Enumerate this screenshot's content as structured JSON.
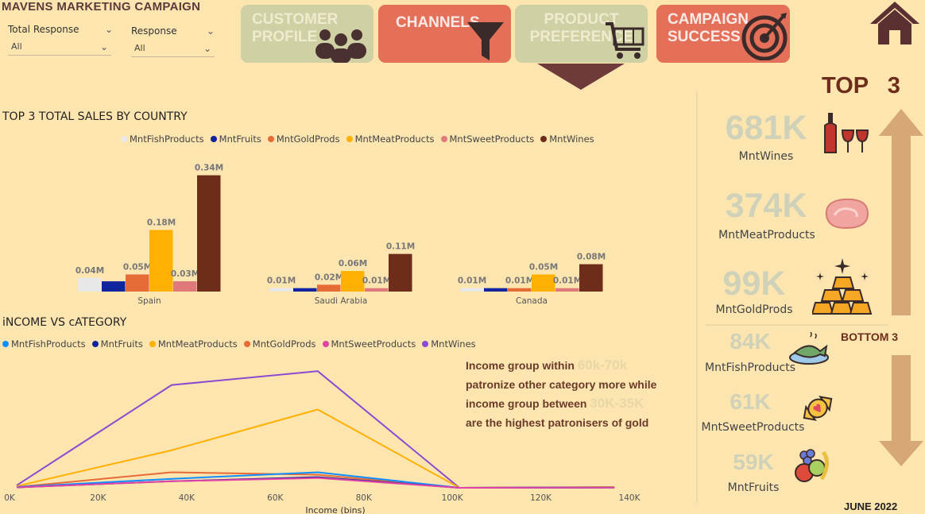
{
  "header": {
    "title": "MAVENS MARKETING CAMPAIGN",
    "slicers": [
      {
        "label": "Total Response",
        "value": "All"
      },
      {
        "label": "Response",
        "value": "All"
      }
    ],
    "nav": [
      {
        "label_line1": "CUSTOMER",
        "label_line2": "PROFILE",
        "icon": "people-icon",
        "color": "#cfd0a4"
      },
      {
        "label_line1": "CHANNELS",
        "label_line2": "",
        "icon": "funnel-icon",
        "color": "#e4705a"
      },
      {
        "label_line1": "PRODUCT",
        "label_line2": "PREFERENCE",
        "icon": "cart-icon",
        "color": "#cfd0a4"
      },
      {
        "label_line1": "CAMPAIGN",
        "label_line2": "SUCCESS",
        "icon": "target-icon",
        "color": "#e4705a"
      }
    ]
  },
  "sales_chart": {
    "title": "TOP 3 TOTAL SALES BY COUNTRY",
    "legend": [
      {
        "name": "MntFishProducts",
        "color": "#e8e8e8"
      },
      {
        "name": "MntFruits",
        "color": "#12239e"
      },
      {
        "name": "MntGoldProds",
        "color": "#e66c37"
      },
      {
        "name": "MntMeatProducts",
        "color": "#ffb000"
      },
      {
        "name": "MntSweetProducts",
        "color": "#e07a7a"
      },
      {
        "name": "MntWines",
        "color": "#6e2d1b"
      }
    ]
  },
  "income_chart": {
    "title": "iNCOME VS cATEGORY",
    "xlabel": "Income (bins)",
    "legend": [
      {
        "name": "MntFishProducts",
        "color": "#118dff"
      },
      {
        "name": "MntFruits",
        "color": "#12239e"
      },
      {
        "name": "MntMeatProducts",
        "color": "#ffb000"
      },
      {
        "name": "MntGoldProds",
        "color": "#e66c37"
      },
      {
        "name": "MntSweetProducts",
        "color": "#e044a7"
      },
      {
        "name": "MntWines",
        "color": "#8b4bd1"
      }
    ]
  },
  "chart_data": [
    {
      "type": "bar",
      "title": "TOP 3 TOTAL SALES BY COUNTRY",
      "categories": [
        "Spain",
        "Saudi Arabia",
        "Canada"
      ],
      "unit": "M",
      "ylim": [
        0,
        0.36
      ],
      "series": [
        {
          "name": "MntFishProducts",
          "values": [
            0.04,
            0.01,
            0.01
          ],
          "labels": [
            "0.04M",
            "0.01M",
            "0.01M"
          ]
        },
        {
          "name": "MntFruits",
          "values": [
            0.03,
            0.01,
            0.01
          ],
          "labels": [
            "",
            "",
            ""
          ]
        },
        {
          "name": "MntGoldProds",
          "values": [
            0.05,
            0.02,
            0.01
          ],
          "labels": [
            "0.05M",
            "0.02M",
            "0.01M"
          ]
        },
        {
          "name": "MntMeatProducts",
          "values": [
            0.18,
            0.06,
            0.05
          ],
          "labels": [
            "0.18M",
            "0.06M",
            "0.05M"
          ]
        },
        {
          "name": "MntSweetProducts",
          "values": [
            0.03,
            0.01,
            0.01
          ],
          "labels": [
            "0.03M",
            "0.01M",
            "0.01M"
          ]
        },
        {
          "name": "MntWines",
          "values": [
            0.34,
            0.11,
            0.08
          ],
          "labels": [
            "0.34M",
            "0.11M",
            "0.08M"
          ]
        }
      ]
    },
    {
      "type": "line",
      "title": "iNCOME VS cATEGORY",
      "xlabel": "Income (bins)",
      "x": [
        0,
        35000,
        68000,
        100000,
        135000
      ],
      "xticks": [
        0,
        20000,
        40000,
        60000,
        80000,
        100000,
        120000,
        140000
      ],
      "xtick_labels": [
        "0K",
        "20K",
        "40K",
        "60K",
        "80K",
        "100K",
        "120K",
        "140K"
      ],
      "xlim": [
        0,
        140000
      ],
      "ylim": [
        0,
        150000
      ],
      "series": [
        {
          "name": "MntWines",
          "values": [
            3000,
            126000,
            143000,
            0,
            500
          ]
        },
        {
          "name": "MntMeatProducts",
          "values": [
            2000,
            46000,
            96000,
            0,
            1000
          ]
        },
        {
          "name": "MntGoldProds",
          "values": [
            1000,
            19000,
            16000,
            0,
            500
          ]
        },
        {
          "name": "MntFishProducts",
          "values": [
            1000,
            11000,
            19000,
            0,
            500
          ]
        },
        {
          "name": "MntFruits",
          "values": [
            500,
            8000,
            13000,
            0,
            300
          ]
        },
        {
          "name": "MntSweetProducts",
          "values": [
            500,
            8000,
            12000,
            0,
            300
          ]
        }
      ]
    }
  ],
  "annotation": {
    "line1_a": "Income group within ",
    "line1_b": "60k-70k",
    "line2": "patronize other category more while",
    "line3_a": "income group between ",
    "line3_b": "30K-35K",
    "line4": "are the highest patronisers of gold"
  },
  "kpis": {
    "top_title": "TOP   3",
    "bottom_title": "BOTTOM 3",
    "top": [
      {
        "value": "681K",
        "label": "MntWines",
        "icon": "wine-icon"
      },
      {
        "value": "374K",
        "label": "MntMeatProducts",
        "icon": "steak-icon"
      },
      {
        "value": "99K",
        "label": "MntGoldProds",
        "icon": "gold-bars-icon"
      }
    ],
    "bottom": [
      {
        "value": "84K",
        "label": "MntFishProducts",
        "icon": "fish-icon"
      },
      {
        "value": "61K",
        "label": "MntSweetProducts",
        "icon": "candy-icon"
      },
      {
        "value": "59K",
        "label": "MntFruits",
        "icon": "fruits-icon"
      }
    ]
  },
  "footer": {
    "date": "JUNE 2022"
  }
}
